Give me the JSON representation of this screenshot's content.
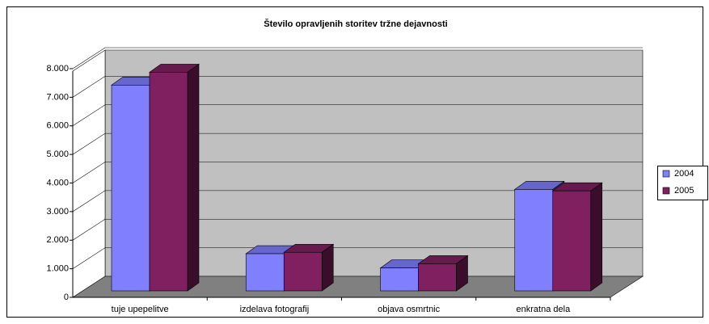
{
  "chart_data": {
    "type": "bar3d",
    "title": "Število opravljenih storitev  tržne dejavnosti",
    "categories": [
      "tuje upepelitve",
      "izdelava fotografij",
      "objava osmrtnic",
      "enkratna dela"
    ],
    "series": [
      {
        "name": "2004",
        "color": "#8080ff",
        "values": [
          7200,
          1300,
          800,
          3550
        ]
      },
      {
        "name": "2005",
        "color": "#802060",
        "values": [
          7650,
          1350,
          950,
          3500
        ]
      }
    ],
    "ylim": [
      0,
      8000
    ],
    "yticks": [
      0,
      {
        "value": 1000,
        "label": "1.000"
      },
      {
        "value": 2000,
        "label": "2.000"
      },
      {
        "value": 3000,
        "label": "3.000"
      },
      {
        "value": 4000,
        "label": "4.000"
      },
      {
        "value": 5000,
        "label": "5.000"
      },
      {
        "value": 6000,
        "label": "6.000"
      },
      {
        "value": 7000,
        "label": "7.000"
      },
      {
        "value": 8000,
        "label": "8.000"
      }
    ],
    "grid": true,
    "legend": "right"
  }
}
